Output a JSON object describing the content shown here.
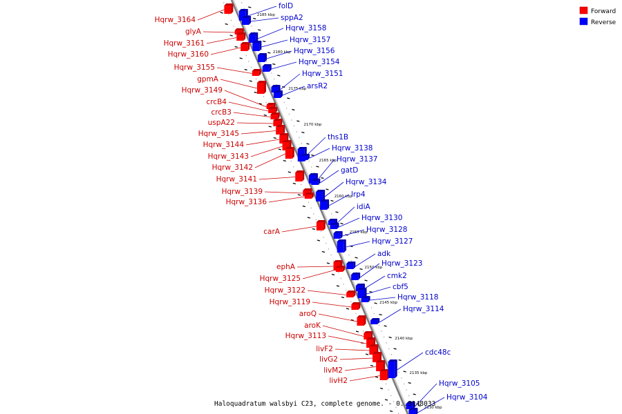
{
  "title": "Haloquadratum walsbyi C23, complete genome. - 0..3148033",
  "legend": {
    "forward_label": "Forward",
    "reverse_label": "Reverse"
  },
  "colors": {
    "forward": "#ff0000",
    "forward_dark": "#c00000",
    "reverse": "#0000ff",
    "reverse_dark": "#0000b0",
    "forward_text": "#cc0000",
    "reverse_text": "#0000cc"
  },
  "ticks": [
    "2185 kbp",
    "2180 kbp",
    "2175 kbp",
    "2170 kbp",
    "2165 kbp",
    "2160 kbp",
    "2155 kbp",
    "2150 kbp",
    "2145 kbp",
    "2140 kbp",
    "2135 kbp",
    "2130 kbp"
  ],
  "forward_genes": [
    "Hqrw_3164",
    "glyA",
    "Hqrw_3161",
    "Hqrw_3160",
    "Hqrw_3155",
    "gpmA",
    "Hqrw_3149",
    "crcB4",
    "crcB3",
    "uspA22",
    "Hqrw_3145",
    "Hqrw_3144",
    "Hqrw_3143",
    "Hqrw_3142",
    "Hqrw_3141",
    "Hqrw_3139",
    "Hqrw_3136",
    "carA",
    "ephA",
    "Hqrw_3125",
    "Hqrw_3122",
    "Hqrw_3119",
    "aroQ",
    "aroK",
    "Hqrw_3113",
    "livF2",
    "livG2",
    "livM2",
    "livH2"
  ],
  "reverse_genes": [
    "folD",
    "sppA2",
    "Hqrw_3158",
    "Hqrw_3157",
    "Hqrw_3156",
    "Hqrw_3154",
    "Hqrw_3151",
    "arsR2",
    "ths1B",
    "Hqrw_3138",
    "Hqrw_3137",
    "gatD",
    "Hqrw_3134",
    "lrp4",
    "idiA",
    "Hqrw_3130",
    "Hqrw_3128",
    "Hqrw_3127",
    "adk",
    "Hqrw_3123",
    "cmk2",
    "cbf5",
    "Hqrw_3118",
    "Hqrw_3114",
    "cdc48c",
    "Hqrw_3105",
    "Hqrw_3104"
  ]
}
